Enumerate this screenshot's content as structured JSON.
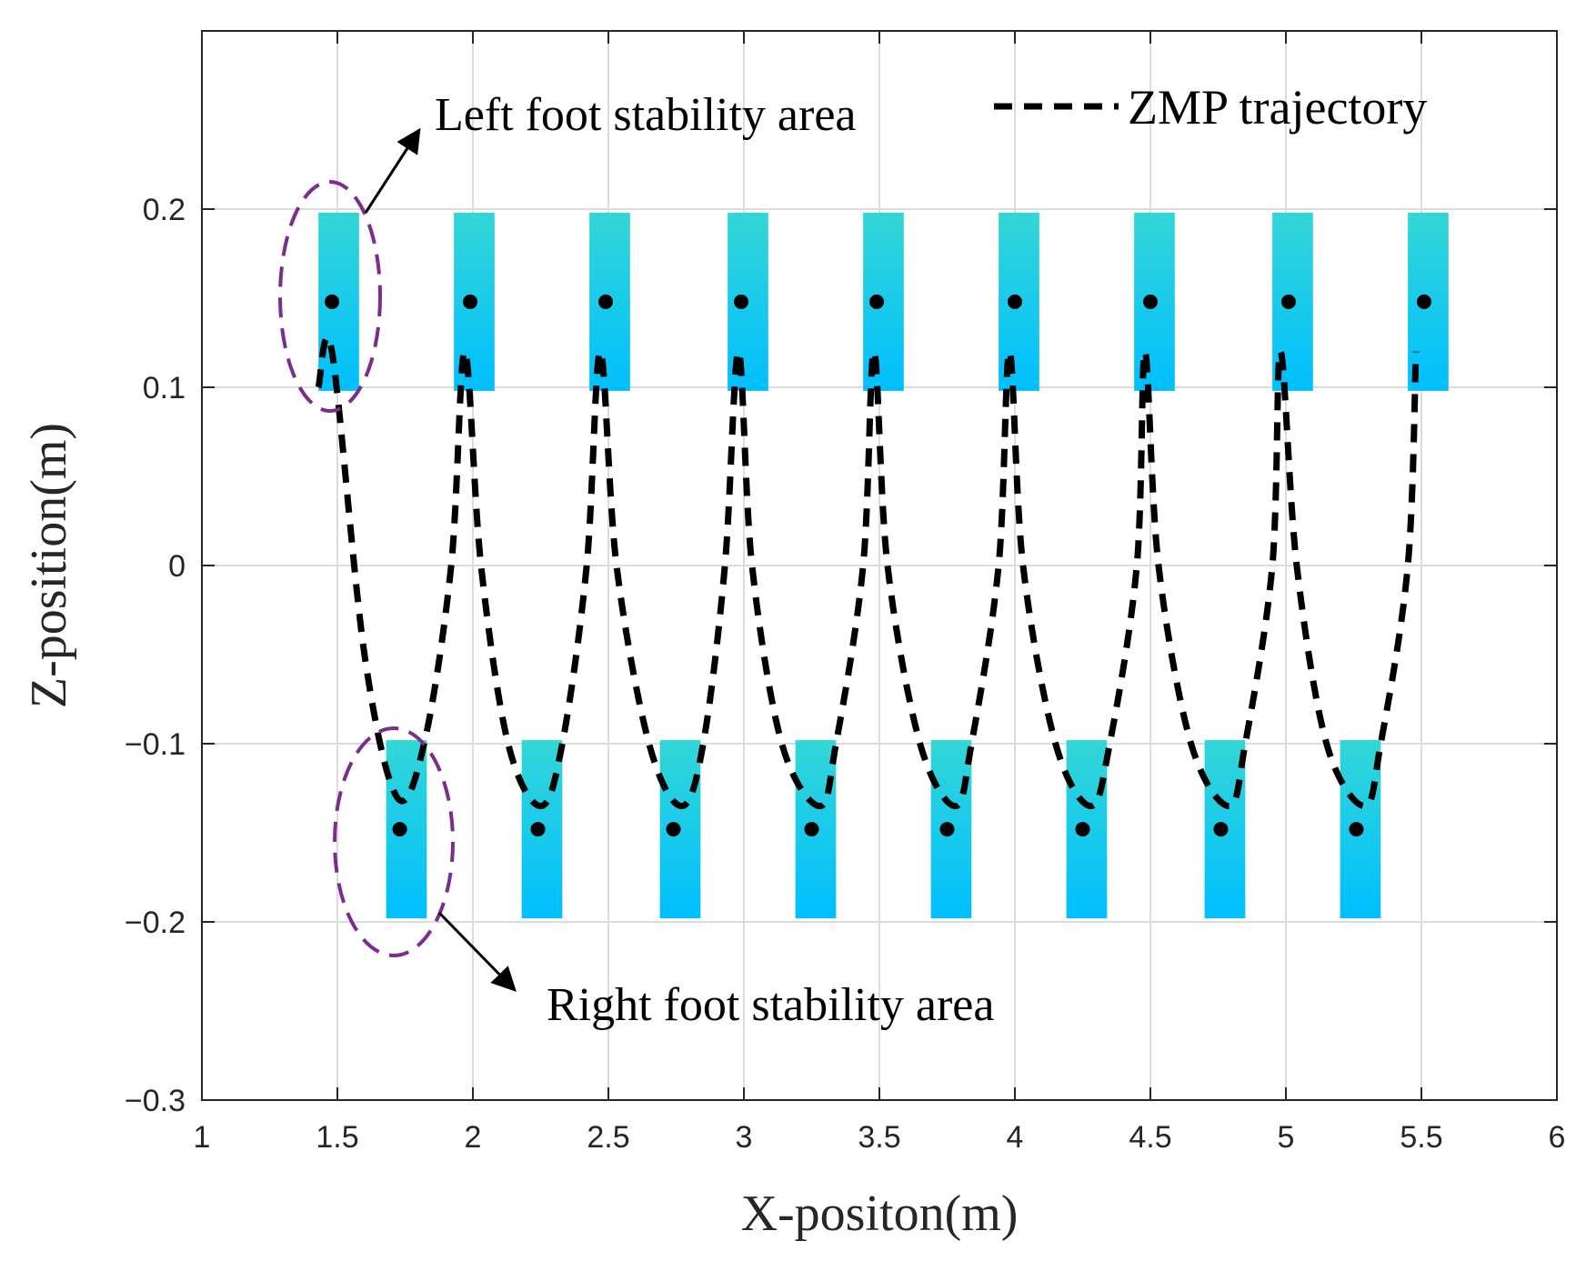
{
  "chart_data": {
    "type": "line",
    "title": "",
    "xlabel": "X-positon(m)",
    "ylabel": "Z-position(m)",
    "xlim": [
      1,
      6
    ],
    "ylim": [
      -0.3,
      0.3
    ],
    "xticks": [
      1,
      1.5,
      2,
      2.5,
      3,
      3.5,
      4,
      4.5,
      5,
      5.5,
      6
    ],
    "xtick_labels": [
      "1",
      "1.5",
      "2",
      "2.5",
      "3",
      "3.5",
      "4",
      "4.5",
      "5",
      "5.5",
      "6"
    ],
    "yticks": [
      -0.3,
      -0.2,
      -0.1,
      0,
      0.1,
      0.2
    ],
    "ytick_labels": [
      "−0.3",
      "−0.2",
      "−0.1",
      "0",
      "0.1",
      "0.2"
    ],
    "grid": true,
    "legend": {
      "position": "top-right",
      "entries": [
        "ZMP trajectory"
      ]
    },
    "series": [
      {
        "name": "ZMP trajectory",
        "style": "dashed",
        "color": "#000000",
        "x": [
          1.43,
          1.48,
          1.6,
          1.72,
          1.82,
          1.92,
          1.97,
          2.03,
          2.13,
          2.25,
          2.33,
          2.42,
          2.47,
          2.53,
          2.65,
          2.77,
          2.85,
          2.93,
          2.98,
          3.03,
          3.14,
          3.28,
          3.34,
          3.44,
          3.48,
          3.53,
          3.65,
          3.78,
          3.84,
          3.94,
          3.98,
          4.03,
          4.15,
          4.28,
          4.35,
          4.45,
          4.48,
          4.53,
          4.65,
          4.79,
          4.85,
          4.95,
          4.98,
          5.04,
          5.15,
          5.29,
          5.35,
          5.45,
          5.48
        ],
        "y": [
          0.1,
          0.12,
          -0.05,
          -0.13,
          -0.1,
          0.0,
          0.12,
          0.0,
          -0.1,
          -0.135,
          -0.1,
          0.0,
          0.12,
          0.0,
          -0.1,
          -0.135,
          -0.1,
          0.0,
          0.12,
          0.0,
          -0.1,
          -0.135,
          -0.1,
          0.0,
          0.12,
          0.0,
          -0.1,
          -0.135,
          -0.1,
          0.0,
          0.12,
          0.0,
          -0.1,
          -0.135,
          -0.1,
          0.0,
          0.12,
          0.0,
          -0.1,
          -0.135,
          -0.1,
          0.0,
          0.12,
          0.0,
          -0.1,
          -0.135,
          -0.1,
          0.0,
          0.12
        ]
      }
    ],
    "foot_areas": {
      "left": {
        "x_start": [
          1.43,
          1.93,
          2.43,
          2.94,
          3.44,
          3.94,
          4.44,
          4.95,
          5.45
        ],
        "width": 0.15,
        "z_range": [
          0.098,
          0.198
        ]
      },
      "right": {
        "x_start": [
          1.68,
          2.18,
          2.69,
          3.19,
          3.69,
          4.19,
          4.7,
          5.2
        ],
        "width": 0.15,
        "z_range": [
          -0.198,
          -0.098
        ]
      }
    },
    "foot_centers": {
      "left": {
        "x": [
          1.48,
          1.99,
          2.49,
          2.99,
          3.49,
          4.0,
          4.5,
          5.01,
          5.51
        ],
        "z": 0.148
      },
      "right": {
        "x": [
          1.73,
          2.24,
          2.74,
          3.25,
          3.75,
          4.25,
          4.76,
          5.26
        ],
        "z": -0.148
      }
    },
    "annotations": [
      {
        "text": "Left foot stability area",
        "target_x": 1.48,
        "target_z": 0.15,
        "color": "#7B2D8E"
      },
      {
        "text": "Right foot stability area",
        "target_x": 1.73,
        "target_z": -0.15,
        "color": "#7B2D8E"
      }
    ],
    "colors": {
      "area_top": "#34d6d6",
      "area_bottom": "#00bfff",
      "annotation_ellipse": "#7B2D8E"
    }
  }
}
